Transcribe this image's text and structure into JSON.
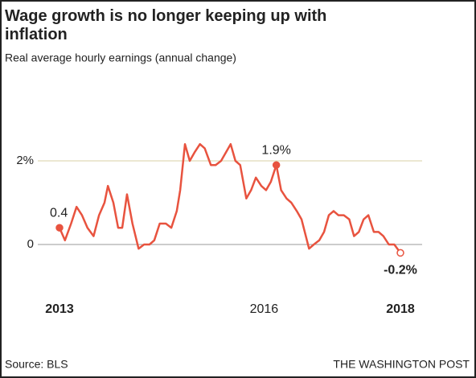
{
  "chart_data": {
    "type": "line",
    "title": "Wage growth is no longer keeping up with inflation",
    "subtitle": "Real average hourly earnings (annual change)",
    "source": "Source: BLS",
    "credit": "THE WASHINGTON POST",
    "x": [
      2013.0,
      2013.08,
      2013.17,
      2013.25,
      2013.33,
      2013.41,
      2013.5,
      2013.58,
      2013.66,
      2013.71,
      2013.79,
      2013.86,
      2013.92,
      2013.99,
      2014.07,
      2014.16,
      2014.24,
      2014.32,
      2014.39,
      2014.47,
      2014.56,
      2014.64,
      2014.72,
      2014.77,
      2014.84,
      2014.91,
      2014.98,
      2015.06,
      2015.13,
      2015.22,
      2015.29,
      2015.37,
      2015.44,
      2015.51,
      2015.58,
      2015.65,
      2015.74,
      2015.81,
      2015.88,
      2015.96,
      2016.03,
      2016.1,
      2016.18,
      2016.25,
      2016.33,
      2016.4,
      2016.48,
      2016.55,
      2016.66,
      2016.73,
      2016.81,
      2016.88,
      2016.95,
      2017.02,
      2017.09,
      2017.17,
      2017.25,
      2017.32,
      2017.39,
      2017.46,
      2017.53,
      2017.61,
      2017.68,
      2017.75,
      2017.83,
      2017.91,
      2018.0
    ],
    "series": [
      {
        "name": "Real average hourly earnings",
        "color": "#e8533f",
        "values": [
          0.4,
          0.1,
          0.5,
          0.9,
          0.7,
          0.4,
          0.2,
          0.7,
          1.0,
          1.4,
          1.0,
          0.4,
          0.4,
          1.2,
          0.5,
          -0.1,
          0.0,
          0.0,
          0.1,
          0.5,
          0.5,
          0.4,
          0.8,
          1.3,
          2.4,
          2.0,
          2.2,
          2.4,
          2.3,
          1.9,
          1.9,
          2.0,
          2.2,
          2.4,
          2.0,
          1.9,
          1.1,
          1.3,
          1.6,
          1.4,
          1.3,
          1.5,
          1.9,
          1.3,
          1.1,
          1.0,
          0.8,
          0.6,
          -0.1,
          0.0,
          0.1,
          0.3,
          0.7,
          0.8,
          0.7,
          0.7,
          0.6,
          0.2,
          0.3,
          0.6,
          0.7,
          0.3,
          0.3,
          0.2,
          0.0,
          0.0,
          -0.2
        ],
        "value_labels": [
          "0.4",
          null,
          null,
          null,
          null,
          null,
          null,
          null,
          null,
          null,
          null,
          null,
          null,
          null,
          null,
          null,
          null,
          null,
          null,
          null,
          null,
          null,
          null,
          null,
          null,
          null,
          null,
          null,
          null,
          null,
          null,
          null,
          null,
          null,
          null,
          null,
          null,
          null,
          null,
          null,
          null,
          null,
          "1.9%",
          null,
          null,
          null,
          null,
          null,
          null,
          null,
          null,
          null,
          null,
          null,
          null,
          null,
          null,
          null,
          null,
          null,
          null,
          null,
          null,
          null,
          null,
          null,
          "-0.2%"
        ]
      }
    ],
    "xlim": [
      2013,
      2018
    ],
    "xticks": [
      2013,
      2016,
      2018
    ],
    "ylim": [
      -0.5,
      2.5
    ],
    "yticks": [
      0,
      {
        "value": 2,
        "label": "2%"
      }
    ]
  }
}
